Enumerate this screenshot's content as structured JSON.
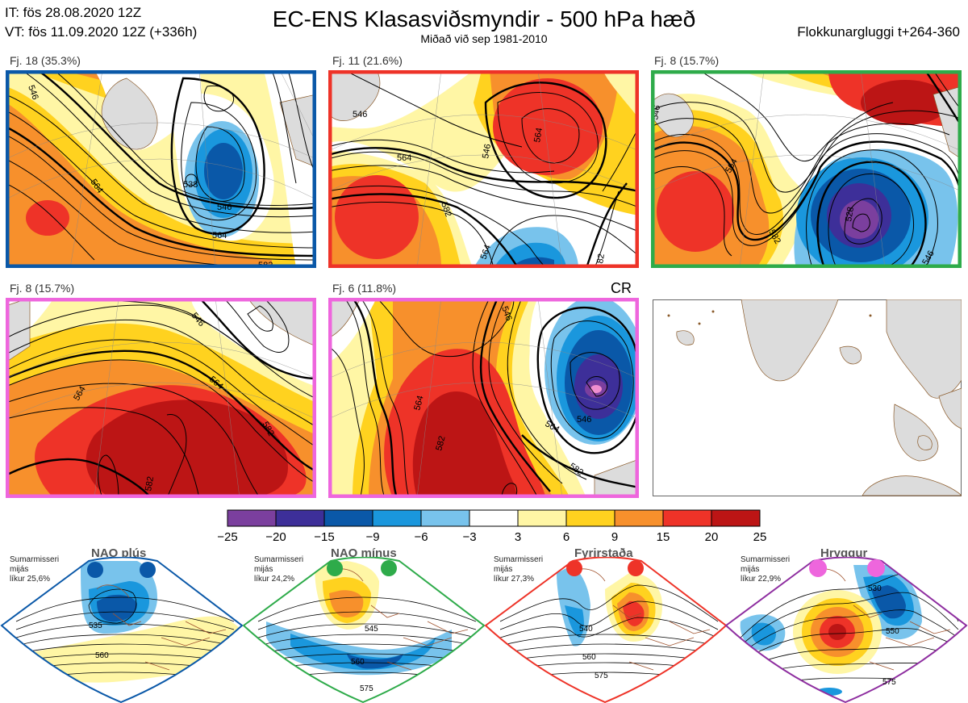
{
  "header": {
    "it_line": "IT: fös 28.08.2020 12Z",
    "vt_line": "VT: fös 11.09.2020 12Z  (+336h)",
    "title": "EC-ENS Klasasviðsmyndir - 500 hPa hæð",
    "subtitle": "Miðað við sep 1981-2010",
    "window": "Flokkunargluggi t+264-360"
  },
  "colors": {
    "c_m25": "#7b3f9e",
    "c_m20": "#3d2f99",
    "c_m15": "#0a58a8",
    "c_m9": "#1a97dd",
    "c_m6": "#78c3ec",
    "c_m3": "#ffffff",
    "c_3": "#fff6a5",
    "c_6": "#ffd21f",
    "c_9": "#f7902c",
    "c_15": "#ee3328",
    "c_20": "#bc1515",
    "border_blue": "#0a58a8",
    "border_red": "#ee3328",
    "border_green": "#2eab4a",
    "border_magenta": "#ee66dd",
    "border_purple": "#8e2ea0",
    "land": "#dcdcdc",
    "coast": "#8a5a2a"
  },
  "panels": [
    {
      "label": "Fj. 18 (35.3%)",
      "contours": [
        "546",
        "564",
        "538",
        "546",
        "564",
        "582"
      ]
    },
    {
      "label": "Fj. 11 (21.6%)",
      "contours": [
        "546",
        "564",
        "546",
        "564",
        "582",
        "564",
        "82"
      ]
    },
    {
      "label": "Fj. 8 (15.7%)",
      "contours": [
        "546",
        "564",
        "582",
        "528",
        "546"
      ]
    },
    {
      "label": "Fj. 8 (15.7%)",
      "contours": [
        "546",
        "564",
        "564",
        "582",
        "582"
      ]
    },
    {
      "label": "Fj. 6 (11.8%)",
      "contours": [
        "546",
        "564",
        "582",
        "564",
        "546",
        "582"
      ]
    }
  ],
  "cr_label": "CR",
  "colorbar": {
    "ticks": [
      "−25",
      "−20",
      "−15",
      "−9",
      "−6",
      "−3",
      "3",
      "6",
      "9",
      "15",
      "20",
      "25"
    ]
  },
  "regimes": [
    {
      "name": "NAO plús",
      "stat": [
        "Sumarmisseri",
        "mijás",
        "líkur 25,6%"
      ],
      "contours": [
        "535",
        "560"
      ]
    },
    {
      "name": "NAO mínus",
      "stat": [
        "Sumarmisseri",
        "mijás",
        "líkur 24,2%"
      ],
      "contours": [
        "545",
        "560",
        "575"
      ]
    },
    {
      "name": "Fyrirstaða",
      "stat": [
        "Sumarmisseri",
        "mijás",
        "líkur 27,3%"
      ],
      "contours": [
        "540",
        "560",
        "575"
      ]
    },
    {
      "name": "Hryggur",
      "stat": [
        "Sumarmisseri",
        "mijás",
        "líkur 22,9%"
      ],
      "contours": [
        "530",
        "550",
        "575"
      ]
    }
  ]
}
